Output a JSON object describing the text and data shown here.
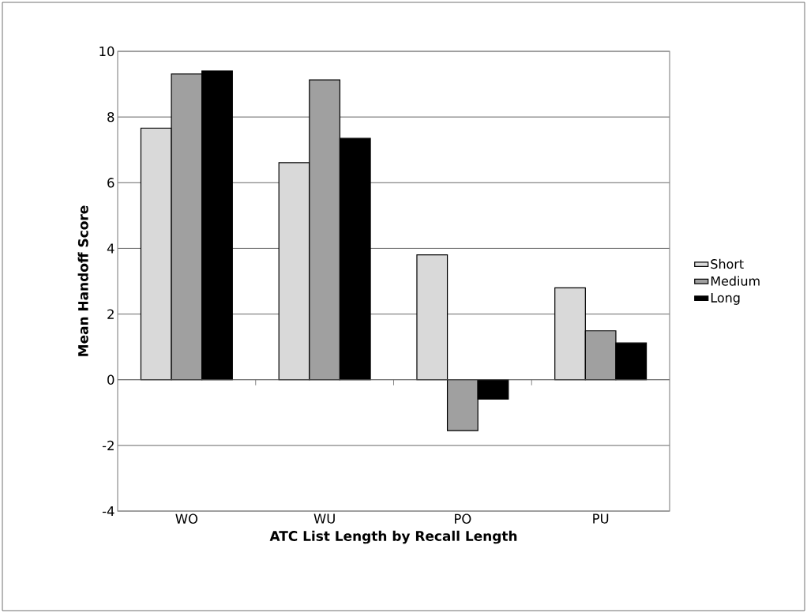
{
  "chart_data": {
    "type": "bar",
    "xlabel": "ATC List Length by Recall Length",
    "ylabel": "Mean Handoff Score",
    "categories": [
      "WO",
      "WU",
      "PO",
      "PU"
    ],
    "series": [
      {
        "name": "Short",
        "color": "#d9d9d9",
        "values": [
          7.66,
          6.61,
          3.8,
          2.8
        ]
      },
      {
        "name": "Medium",
        "color": "#a0a0a0",
        "values": [
          9.31,
          9.13,
          -1.55,
          1.49
        ]
      },
      {
        "name": "Long",
        "color": "#000000",
        "values": [
          9.4,
          7.35,
          -0.59,
          1.12
        ]
      }
    ],
    "ylim": [
      -4,
      10
    ],
    "yticks": [
      -4,
      -2,
      0,
      2,
      4,
      6,
      8,
      10
    ],
    "grid": "y",
    "legend": "right"
  }
}
